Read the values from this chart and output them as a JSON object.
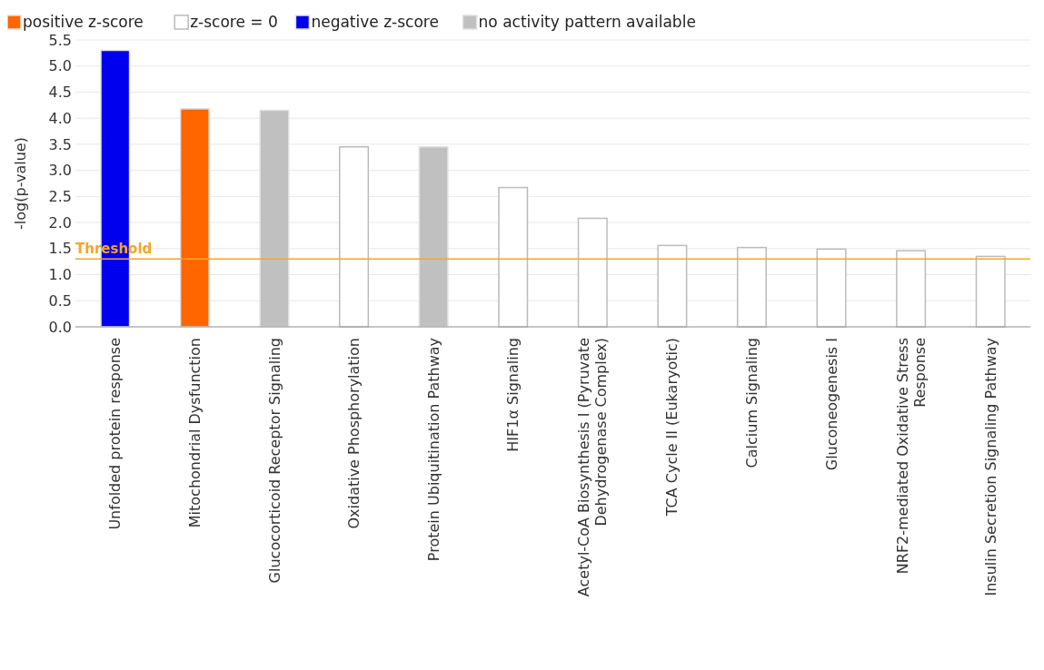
{
  "chart_data": {
    "type": "bar",
    "ylabel": "-log(p-value)",
    "categories": [
      "Unfolded protein response",
      "Mitochondrial Dysfunction",
      "Glucocorticoid Receptor Signaling",
      "Oxidative Phosphorylation",
      "Protein Ubiquitination Pathway",
      "HIF1α Signaling",
      "Acetyl-CoA Biosynthesis I (Pyruvate Dehydrogenase Complex)",
      "TCA Cycle II (Eukaryotic)",
      "Calcium Signaling",
      "Gluconeogenesis I",
      "NRF2-mediated Oxidative Stress Response",
      "Insulin Secretion Signaling Pathway"
    ],
    "series": [
      {
        "name": "positive z-score",
        "color": "#ff6600",
        "values": [
          null,
          4.18,
          null,
          null,
          null,
          null,
          null,
          null,
          null,
          null,
          null,
          null
        ]
      },
      {
        "name": "z-score = 0",
        "color": "#ffffff",
        "values": [
          null,
          null,
          null,
          3.45,
          null,
          2.67,
          2.08,
          1.56,
          1.52,
          1.49,
          1.46,
          1.35
        ]
      },
      {
        "name": "negative z-score",
        "color": "#0000ee",
        "values": [
          5.3,
          null,
          null,
          null,
          null,
          null,
          null,
          null,
          null,
          null,
          null,
          null
        ]
      },
      {
        "name": "no activity pattern available",
        "color": "#c0c0c0",
        "values": [
          null,
          null,
          4.15,
          null,
          3.45,
          null,
          null,
          null,
          null,
          null,
          null,
          null
        ]
      }
    ],
    "ylim": [
      0,
      5.5
    ],
    "yticks": [
      {
        "value": 0,
        "label": "0.0"
      },
      {
        "value": 0.5,
        "label": "0.5"
      },
      {
        "value": 1,
        "label": "1.0"
      },
      {
        "value": 1.5,
        "label": "1.5"
      },
      {
        "value": 2,
        "label": "2.0"
      },
      {
        "value": 2.5,
        "label": "2.5"
      },
      {
        "value": 3,
        "label": "3.0"
      },
      {
        "value": 3.5,
        "label": "3.5"
      },
      {
        "value": 4,
        "label": "4.0"
      },
      {
        "value": 4.5,
        "label": "4.5"
      },
      {
        "value": 5,
        "label": "5.0"
      },
      {
        "value": 5.5,
        "label": "5.5"
      }
    ],
    "grid": "y",
    "legend": "top left",
    "ref_lines": [
      {
        "axis": "y",
        "value": 1.3,
        "label": "Threshold",
        "color": "#f5a623"
      }
    ]
  }
}
